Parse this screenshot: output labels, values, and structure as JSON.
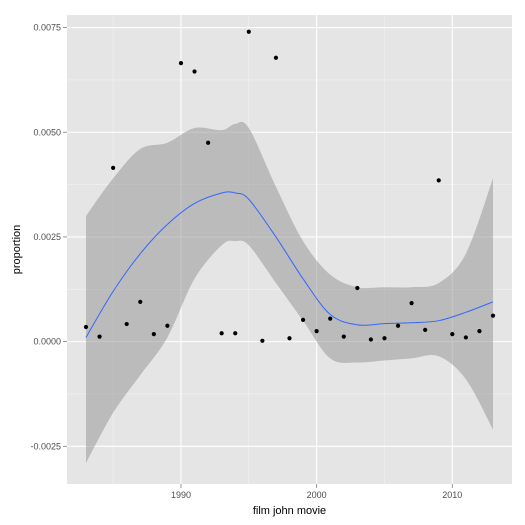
{
  "chart_data": {
    "type": "scatter",
    "title": "",
    "xlabel": "film john movie",
    "ylabel": "proportion",
    "xlim": [
      1981.6,
      2014.4
    ],
    "ylim": [
      -0.0034,
      0.0078
    ],
    "x_ticks": [
      1990,
      2000,
      2010
    ],
    "y_ticks": [
      -0.0025,
      0.0,
      0.0025,
      0.005,
      0.0075
    ],
    "x_tick_labels": [
      "1990",
      "2000",
      "2010"
    ],
    "y_tick_labels": [
      "-0.0025",
      "0.0000",
      "0.0025",
      "0.0050",
      "0.0075"
    ],
    "grid": true,
    "colors": {
      "panel": "#e5e5e5",
      "grid_major": "#ffffff",
      "grid_minor": "#f2f2f2",
      "points": "#000000",
      "smooth_line": "#3366ff",
      "ribbon": "#999999"
    },
    "points": [
      {
        "x": 1983,
        "y": 0.00035
      },
      {
        "x": 1984,
        "y": 0.00012
      },
      {
        "x": 1985,
        "y": 0.00415
      },
      {
        "x": 1986,
        "y": 0.00042
      },
      {
        "x": 1987,
        "y": 0.00095
      },
      {
        "x": 1988,
        "y": 0.00018
      },
      {
        "x": 1989,
        "y": 0.00038
      },
      {
        "x": 1990,
        "y": 0.00665
      },
      {
        "x": 1991,
        "y": 0.00645
      },
      {
        "x": 1992,
        "y": 0.00475
      },
      {
        "x": 1993,
        "y": 0.0002
      },
      {
        "x": 1994,
        "y": 0.0002
      },
      {
        "x": 1995,
        "y": 0.0074
      },
      {
        "x": 1996,
        "y": 2e-05
      },
      {
        "x": 1997,
        "y": 0.00678
      },
      {
        "x": 1998,
        "y": 8e-05
      },
      {
        "x": 1999,
        "y": 0.00052
      },
      {
        "x": 2000,
        "y": 0.00025
      },
      {
        "x": 2001,
        "y": 0.00055
      },
      {
        "x": 2002,
        "y": 0.00012
      },
      {
        "x": 2003,
        "y": 0.00128
      },
      {
        "x": 2004,
        "y": 5e-05
      },
      {
        "x": 2005,
        "y": 8e-05
      },
      {
        "x": 2006,
        "y": 0.00038
      },
      {
        "x": 2007,
        "y": 0.00092
      },
      {
        "x": 2008,
        "y": 0.00028
      },
      {
        "x": 2009,
        "y": 0.00385
      },
      {
        "x": 2010,
        "y": 0.00018
      },
      {
        "x": 2011,
        "y": 0.0001
      },
      {
        "x": 2012,
        "y": 0.00025
      },
      {
        "x": 2013,
        "y": 0.00062
      }
    ],
    "smooth": {
      "x": [
        1983,
        1985,
        1987,
        1989,
        1991,
        1993,
        1994,
        1995,
        1997,
        1999,
        2001,
        2003,
        2005,
        2007,
        2009,
        2011,
        2013
      ],
      "y": [
        0.0001,
        0.0012,
        0.0021,
        0.0028,
        0.0033,
        0.00355,
        0.00355,
        0.0034,
        0.0025,
        0.0015,
        0.00065,
        0.0004,
        0.00043,
        0.00045,
        0.0005,
        0.0007,
        0.00095
      ],
      "lower": [
        -0.0029,
        -0.0017,
        -0.0008,
        0.0001,
        0.0015,
        0.0023,
        0.0024,
        0.0023,
        0.0014,
        0.0005,
        -0.0004,
        -0.0005,
        -0.00045,
        -0.0004,
        -0.00035,
        -0.0009,
        -0.0021
      ],
      "upper": [
        0.003,
        0.0039,
        0.0046,
        0.00475,
        0.0051,
        0.00505,
        0.0052,
        0.0051,
        0.0037,
        0.0024,
        0.0016,
        0.0013,
        0.0013,
        0.0013,
        0.0014,
        0.0021,
        0.0039
      ]
    }
  }
}
